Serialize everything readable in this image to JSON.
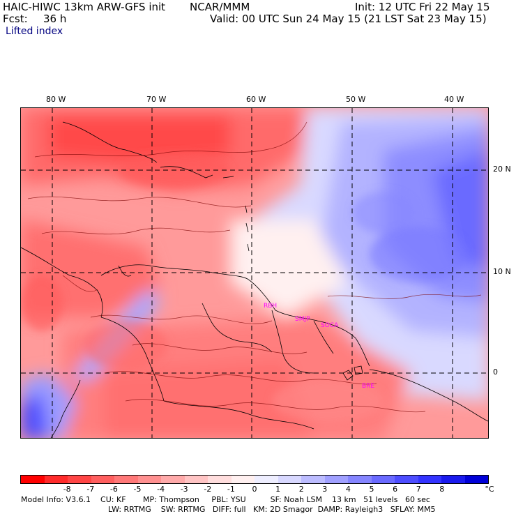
{
  "header": {
    "title_left": "HAIC-HIWC 13km ARW-GFS init",
    "org": "NCAR/MMM",
    "init": "Init: 12 UTC Fri 22 May 15",
    "fcst_label": "Fcst:",
    "fcst_value": "36 h",
    "valid": "Valid: 00 UTC Sun 24 May 15 (21 LST Sat 23 May 15)",
    "field": "Lifted index"
  },
  "map": {
    "lon_labels": [
      "80 W",
      "70 W",
      "60 W",
      "50 W",
      "40 W"
    ],
    "lat_labels": [
      "20 N",
      "10 N",
      "0"
    ],
    "stations": [
      "RBH",
      "SMJP",
      "SOCA",
      "BRE"
    ],
    "palette_note": "red = unstable (negative), blue = stable (positive)"
  },
  "colorbar": {
    "ticks": [
      "-8",
      "-7",
      "-6",
      "-5",
      "-4",
      "-3",
      "-2",
      "-1",
      "0",
      "1",
      "2",
      "3",
      "4",
      "5",
      "6",
      "7",
      "8"
    ],
    "unit": "°C",
    "colors": [
      "#ff0000",
      "#ff2b2b",
      "#ff4545",
      "#ff5f5f",
      "#ff7878",
      "#ff9090",
      "#ffaaaa",
      "#ffc4c4",
      "#ffdddd",
      "#fff0f0",
      "#eeeeff",
      "#d8d8ff",
      "#bcbcff",
      "#a0a0ff",
      "#8585ff",
      "#6a6aff",
      "#4d4dff",
      "#3333ff",
      "#1a1aee",
      "#0000d8"
    ]
  },
  "footer": {
    "line1": "Model Info: V3.6.1    CU: KF       MP: Thompson     PBL: YSU          SF: Noah LSM    13 km   51 levels   60 sec",
    "line2": "LW: RRTMG    SW: RRTMG   DIFF: full   KM: 2D Smagor  DAMP: Rayleigh3   SFLAY: MM5"
  }
}
